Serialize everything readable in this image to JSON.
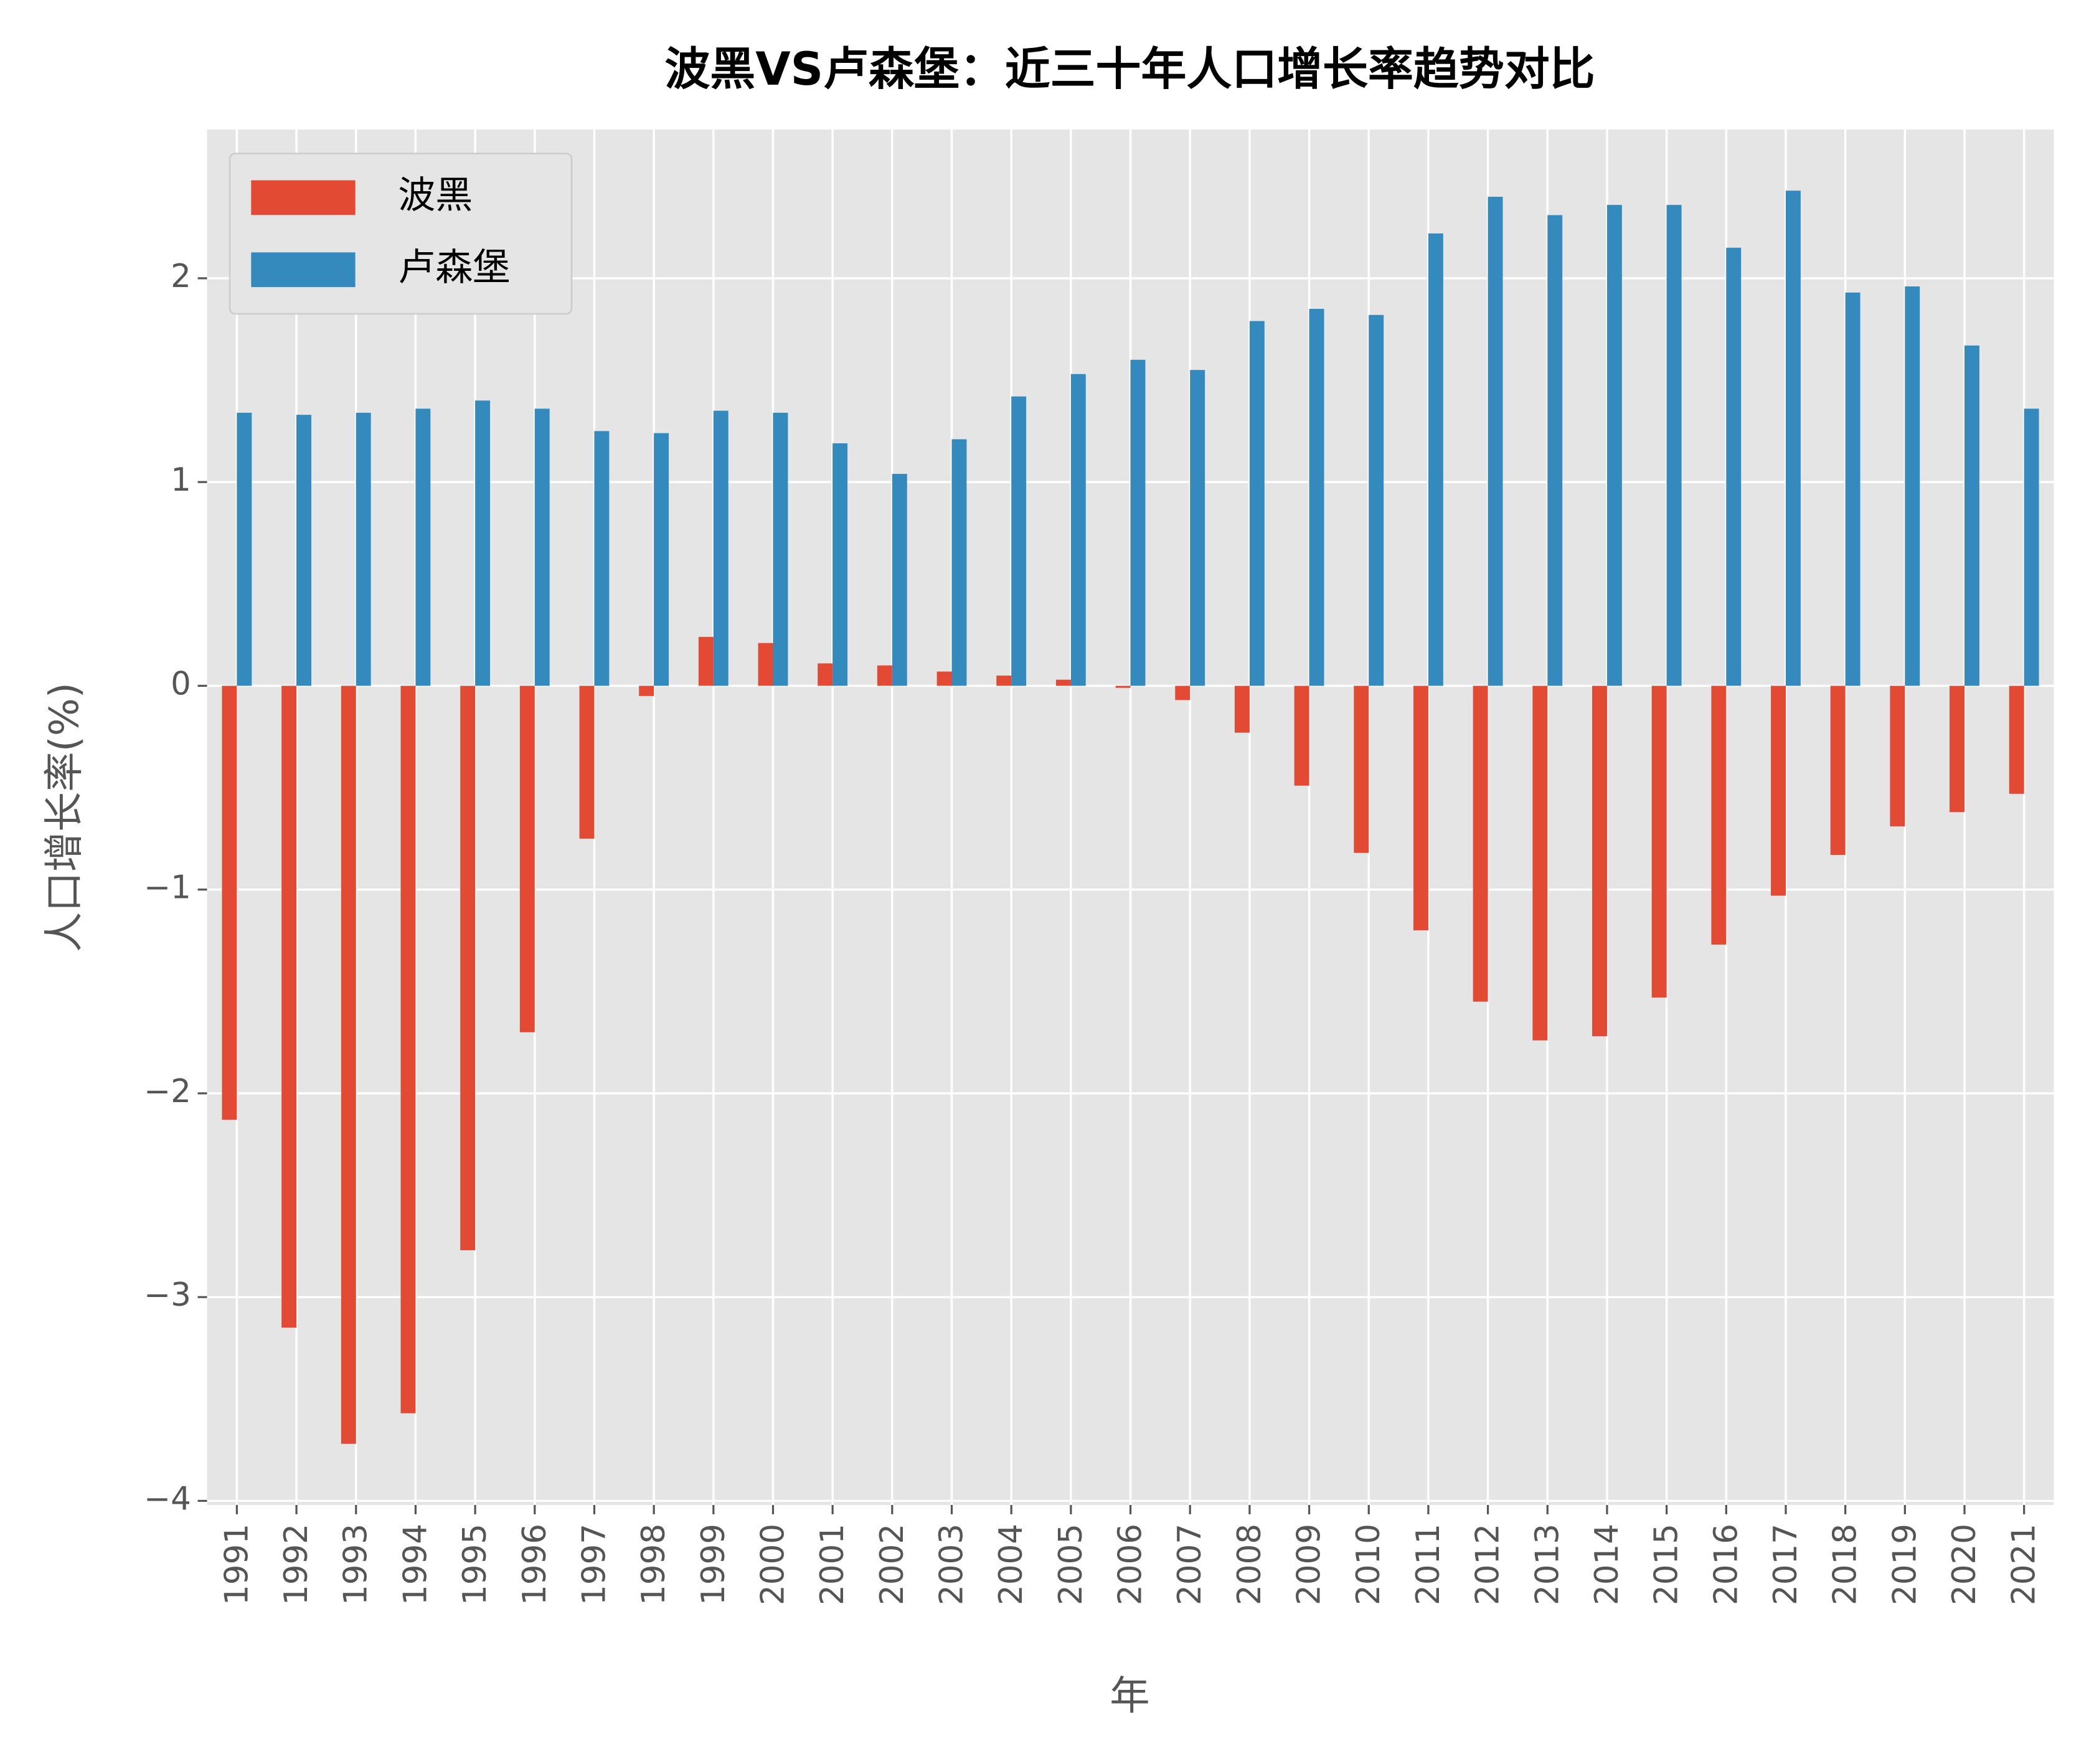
{
  "chart_data": {
    "type": "bar",
    "title": "波黑VS卢森堡：近三十年人口增长率趋势对比",
    "x_label": "年",
    "y_label": "人口增长率(%)",
    "categories": [
      "1991",
      "1992",
      "1993",
      "1994",
      "1995",
      "1996",
      "1997",
      "1998",
      "1999",
      "2000",
      "2001",
      "2002",
      "2003",
      "2004",
      "2005",
      "2006",
      "2007",
      "2008",
      "2009",
      "2010",
      "2011",
      "2012",
      "2013",
      "2014",
      "2015",
      "2016",
      "2017",
      "2018",
      "2019",
      "2020",
      "2021"
    ],
    "series": [
      {
        "name": "波黑",
        "color": "#E24A33",
        "values": [
          -2.13,
          -3.15,
          -3.72,
          -3.57,
          -2.77,
          -1.7,
          -0.75,
          -0.05,
          0.24,
          0.21,
          0.11,
          0.1,
          0.07,
          0.05,
          0.03,
          -0.01,
          -0.07,
          -0.23,
          -0.49,
          -0.82,
          -1.2,
          -1.55,
          -1.74,
          -1.72,
          -1.53,
          -1.27,
          -1.03,
          -0.83,
          -0.69,
          -0.62,
          -0.53
        ]
      },
      {
        "name": "卢森堡",
        "color": "#348ABD",
        "values": [
          1.34,
          1.33,
          1.34,
          1.36,
          1.4,
          1.36,
          1.25,
          1.24,
          1.35,
          1.34,
          1.19,
          1.04,
          1.21,
          1.42,
          1.53,
          1.6,
          1.55,
          1.79,
          1.85,
          1.82,
          2.22,
          2.4,
          2.31,
          2.36,
          2.36,
          2.15,
          2.43,
          1.93,
          1.96,
          1.67,
          1.36
        ]
      }
    ],
    "ylim": [
      -4.02,
      2.73
    ],
    "yticks": [
      {
        "value": -4,
        "label": "−4"
      },
      {
        "value": -3,
        "label": "−3"
      },
      {
        "value": -2,
        "label": "−2"
      },
      {
        "value": -1,
        "label": "−1"
      },
      0,
      1,
      2
    ],
    "grid": true,
    "legend": "upper left"
  }
}
